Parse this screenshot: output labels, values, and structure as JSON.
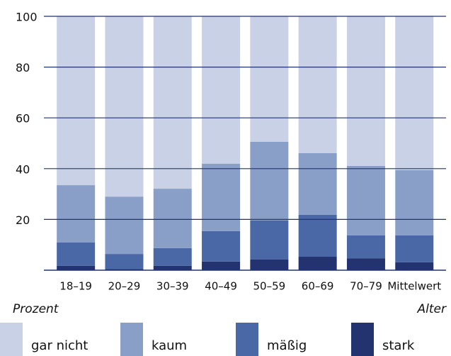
{
  "chart_data": {
    "type": "stacked_bar",
    "x_label": "Alter",
    "y_label": "Prozent",
    "categories": [
      "18–19",
      "20–29",
      "30–39",
      "40–49",
      "50–59",
      "60–69",
      "70–79",
      "Mittelwert"
    ],
    "series": [
      {
        "name": "gar nicht",
        "color": "#c8d1e6",
        "values": [
          66.5,
          71,
          67.9,
          58.1,
          49.4,
          53.9,
          58.9,
          60.6
        ]
      },
      {
        "name": "kaum",
        "color": "#8a9fc8",
        "values": [
          22.6,
          22.6,
          23.4,
          26.5,
          31,
          24.3,
          27.4,
          25.7
        ]
      },
      {
        "name": "mäßig",
        "color": "#4a68a6",
        "values": [
          9.2,
          5.9,
          7,
          12,
          15.4,
          16.5,
          9,
          10.6
        ]
      },
      {
        "name": "stark",
        "color": "#22336f",
        "values": [
          1.7,
          0.5,
          1.7,
          3.4,
          4.2,
          5.3,
          4.7,
          3.1
        ]
      }
    ],
    "ylim": [
      0,
      100
    ],
    "yticks": [
      20,
      40,
      60,
      80,
      100
    ],
    "grid": true
  }
}
